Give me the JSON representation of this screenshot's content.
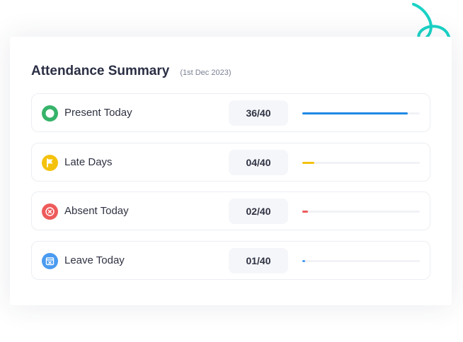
{
  "summary": {
    "title": "Attendance Summary",
    "date": "(1st Dec 2023)"
  },
  "rows": [
    {
      "label": "Present Today",
      "count": "36/40",
      "fraction": 0.9,
      "color": "#1e88e5",
      "icon": "present-icon",
      "icon_bg": "#36b36a"
    },
    {
      "label": "Late Days",
      "count": "04/40",
      "fraction": 0.1,
      "color": "#f4c20d",
      "icon": "flag-icon",
      "icon_bg": "#f4c20d"
    },
    {
      "label": "Absent Today",
      "count": "02/40",
      "fraction": 0.05,
      "color": "#ee5a5a",
      "icon": "absent-icon",
      "icon_bg": "#ee5a5a"
    },
    {
      "label": "Leave Today",
      "count": "01/40",
      "fraction": 0.025,
      "color": "#4a9bf0",
      "icon": "calendar-icon",
      "icon_bg": "#4a9bf0"
    }
  ],
  "decoration": {
    "swirl_color": "#19d3c5"
  }
}
